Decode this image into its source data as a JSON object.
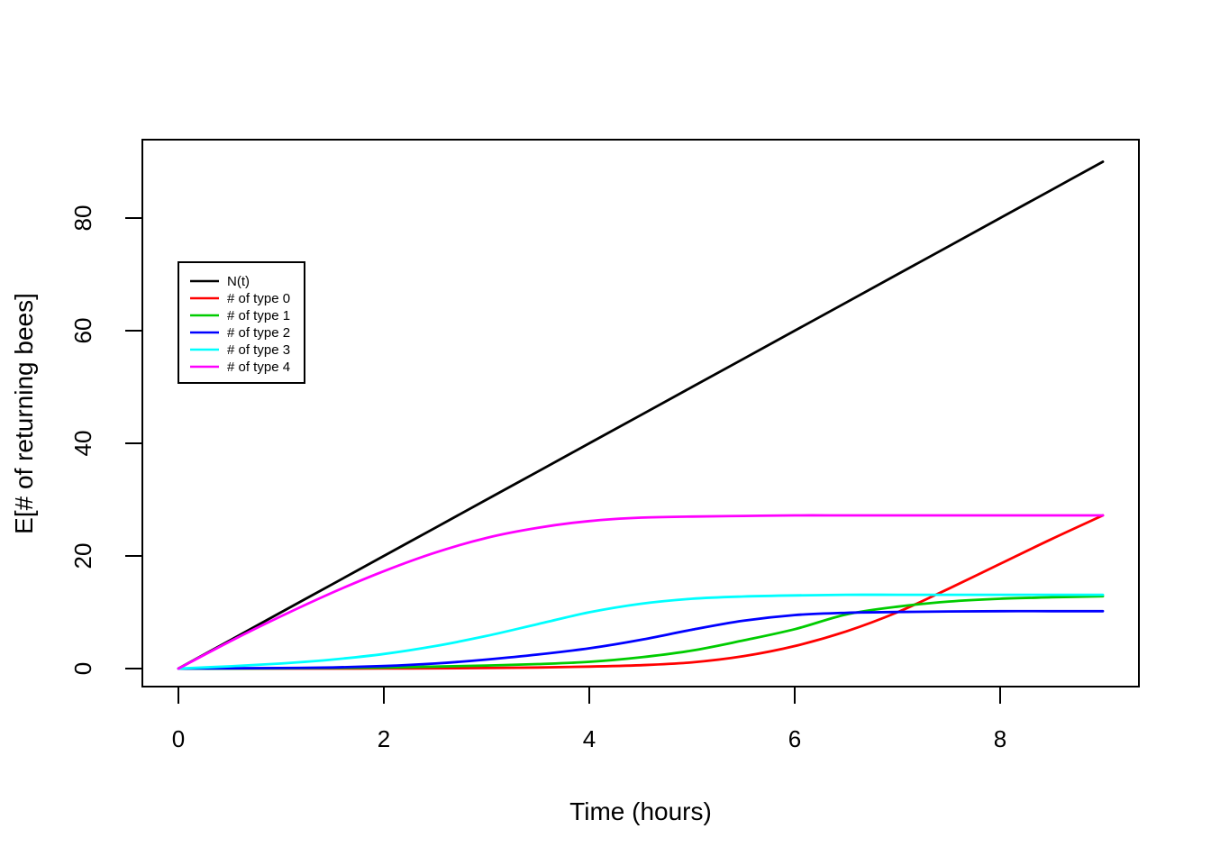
{
  "chart_data": {
    "type": "line",
    "title": "",
    "xlabel": "Time (hours)",
    "ylabel": "E[# of returning bees]",
    "xlim": [
      0,
      9
    ],
    "ylim": [
      0,
      93
    ],
    "x_ticks": [
      0,
      2,
      4,
      6,
      8
    ],
    "y_ticks": [
      0,
      20,
      40,
      60,
      80
    ],
    "grid": false,
    "legend_position": "upper-left",
    "x": [
      0,
      0.5,
      1,
      1.5,
      2,
      2.5,
      3,
      3.5,
      4,
      4.5,
      5,
      5.5,
      6,
      6.5,
      7,
      7.5,
      8,
      8.5,
      9
    ],
    "series": [
      {
        "name": "N(t)",
        "color": "#000000",
        "values": [
          0,
          5,
          10,
          15,
          20,
          25,
          30,
          35,
          40,
          45,
          50,
          55,
          60,
          65,
          70,
          75,
          80,
          85,
          90
        ]
      },
      {
        "name": "# of type 0",
        "color": "#FF0000",
        "values": [
          0,
          0,
          0,
          0,
          0.02,
          0.05,
          0.1,
          0.2,
          0.35,
          0.6,
          1.1,
          2.2,
          4.0,
          6.6,
          10.0,
          14.2,
          18.6,
          23.0,
          27.2
        ]
      },
      {
        "name": "# of type 1",
        "color": "#00CC00",
        "values": [
          0,
          0,
          0.05,
          0.1,
          0.2,
          0.35,
          0.55,
          0.8,
          1.2,
          2.0,
          3.2,
          5.0,
          7.0,
          9.6,
          11.0,
          11.9,
          12.4,
          12.65,
          12.85
        ]
      },
      {
        "name": "# of type 2",
        "color": "#0000FF",
        "values": [
          0,
          0.05,
          0.1,
          0.2,
          0.45,
          0.9,
          1.6,
          2.5,
          3.6,
          5.1,
          6.9,
          8.5,
          9.5,
          9.9,
          10.05,
          10.15,
          10.2,
          10.2,
          10.2
        ]
      },
      {
        "name": "# of type 3",
        "color": "#00FFFF",
        "values": [
          0,
          0.4,
          0.9,
          1.6,
          2.6,
          4.0,
          5.8,
          7.9,
          10.0,
          11.5,
          12.4,
          12.8,
          13.0,
          13.1,
          13.1,
          13.1,
          13.1,
          13.1,
          13.1
        ]
      },
      {
        "name": "# of type 4",
        "color": "#FF00FF",
        "values": [
          0,
          4.8,
          9.3,
          13.5,
          17.3,
          20.6,
          23.2,
          25.0,
          26.2,
          26.8,
          27.0,
          27.1,
          27.2,
          27.2,
          27.2,
          27.2,
          27.2,
          27.2,
          27.2
        ]
      }
    ]
  },
  "colors": {
    "axis": "#000000",
    "background": "#ffffff"
  }
}
